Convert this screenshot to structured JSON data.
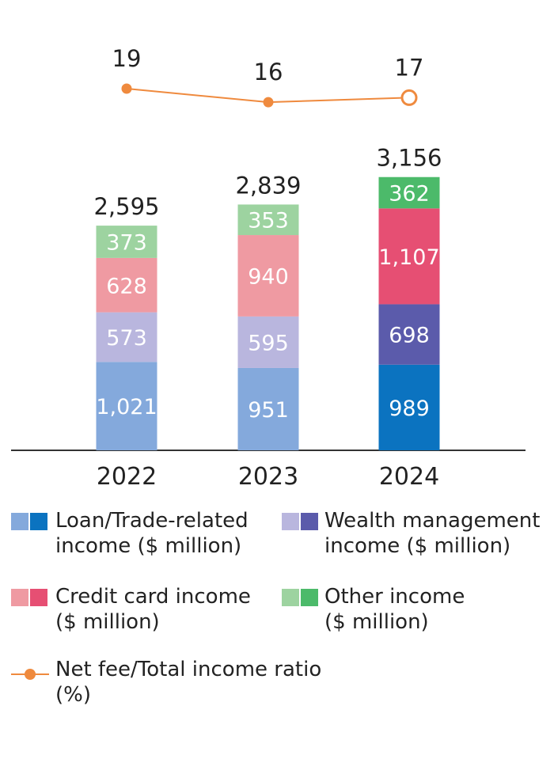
{
  "chart_data": {
    "type": "bar",
    "stacked": true,
    "categories": [
      "2022",
      "2023",
      "2024"
    ],
    "series": [
      {
        "name": "Loan/Trade-related income ($ million)",
        "values": [
          1021,
          951,
          989
        ],
        "colors": [
          "#84a9dc",
          "#84a9dc",
          "#0b73c0"
        ],
        "labels": [
          "1,021",
          "951",
          "989"
        ]
      },
      {
        "name": "Wealth management income ($ million)",
        "values": [
          573,
          595,
          698
        ],
        "colors": [
          "#b9b6de",
          "#b9b6de",
          "#5b5bab"
        ],
        "labels": [
          "573",
          "595",
          "698"
        ]
      },
      {
        "name": "Credit card income ($ million)",
        "values": [
          628,
          940,
          1107
        ],
        "colors": [
          "#ef9aa2",
          "#ef9aa2",
          "#e64f73"
        ],
        "labels": [
          "628",
          "940",
          "1,107"
        ]
      },
      {
        "name": "Other income ($ million)",
        "values": [
          373,
          353,
          362
        ],
        "colors": [
          "#9dd3a0",
          "#9dd3a0",
          "#4cba6a"
        ],
        "labels": [
          "373",
          "353",
          "362"
        ]
      }
    ],
    "totals": [
      "2,595",
      "2,839",
      "3,156"
    ],
    "line": {
      "name": "Net fee/Total income ratio (%)",
      "values": [
        19,
        16,
        17
      ],
      "labels": [
        "19",
        "16",
        "17"
      ],
      "color": "#ef8a3e",
      "last_point_hollow": true
    }
  },
  "legend": {
    "items": [
      {
        "line1": "Loan/Trade-related",
        "line2": "income ($ million)",
        "light": "#84a9dc",
        "dark": "#0b73c0"
      },
      {
        "line1": "Wealth management",
        "line2": "income ($ million)",
        "light": "#b9b6de",
        "dark": "#5b5bab"
      },
      {
        "line1": "Credit card income",
        "line2": "($ million)",
        "light": "#ef9aa2",
        "dark": "#e64f73"
      },
      {
        "line1": "Other income",
        "line2": "($ million)",
        "light": "#9dd3a0",
        "dark": "#4cba6a"
      }
    ],
    "line_item": {
      "line1": "Net fee/Total income ratio",
      "line2": "(%)",
      "color": "#ef8a3e"
    }
  }
}
